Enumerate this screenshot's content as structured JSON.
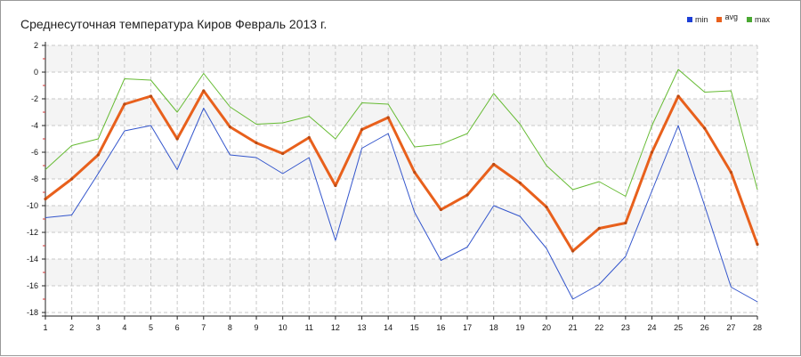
{
  "chart_data": {
    "type": "line",
    "title": "Среднесуточная температура Киров  Февраль 2013 г.",
    "x": [
      1,
      2,
      3,
      4,
      5,
      6,
      7,
      8,
      9,
      10,
      11,
      12,
      13,
      14,
      15,
      16,
      17,
      18,
      19,
      20,
      21,
      22,
      23,
      24,
      25,
      26,
      27,
      28
    ],
    "x_ticks": [
      "1",
      "2",
      "3",
      "4",
      "5",
      "6",
      "7",
      "8",
      "9",
      "10",
      "11",
      "12",
      "13",
      "14",
      "15",
      "16",
      "17",
      "18",
      "19",
      "20",
      "21",
      "22",
      "23",
      "24",
      "25",
      "26",
      "27",
      "28"
    ],
    "y_ticks": [
      "2",
      "0",
      "-2",
      "-4",
      "-6",
      "-8",
      "-10",
      "-12",
      "-14",
      "-16",
      "-18"
    ],
    "ylim": [
      -18,
      2
    ],
    "grid": true,
    "legend_position": "top-right",
    "series": [
      {
        "name": "min",
        "color": "#3355cc",
        "legend_color": "#1d3fd6",
        "values": [
          -10.9,
          -10.7,
          -7.6,
          -4.4,
          -4.0,
          -7.3,
          -2.7,
          -6.2,
          -6.4,
          -7.6,
          -6.4,
          -12.6,
          -5.7,
          -4.6,
          -10.5,
          -14.1,
          -13.1,
          -10.0,
          -10.8,
          -13.2,
          -17.0,
          -15.9,
          -13.8,
          -8.9,
          -4.0,
          -10.0,
          -16.1,
          -17.2
        ]
      },
      {
        "name": "avg",
        "color": "#e8601c",
        "legend_color": "#e8601c",
        "values": [
          -9.5,
          -8.0,
          -6.2,
          -2.4,
          -1.8,
          -5.0,
          -1.4,
          -4.1,
          -5.3,
          -6.1,
          -4.9,
          -8.5,
          -4.3,
          -3.4,
          -7.5,
          -10.3,
          -9.2,
          -6.9,
          -8.3,
          -10.1,
          -13.4,
          -11.7,
          -11.3,
          -6.0,
          -1.8,
          -4.2,
          -7.5,
          -12.9
        ]
      },
      {
        "name": "max",
        "color": "#66bb33",
        "legend_color": "#4aa832",
        "values": [
          -7.3,
          -5.5,
          -5.0,
          -0.5,
          -0.6,
          -3.0,
          -0.1,
          -2.6,
          -3.9,
          -3.8,
          -3.3,
          -5.0,
          -2.3,
          -2.4,
          -5.6,
          -5.4,
          -4.6,
          -1.6,
          -3.9,
          -7.0,
          -8.8,
          -8.2,
          -9.3,
          -4.0,
          0.2,
          -1.5,
          -1.4,
          -8.8
        ]
      }
    ]
  }
}
